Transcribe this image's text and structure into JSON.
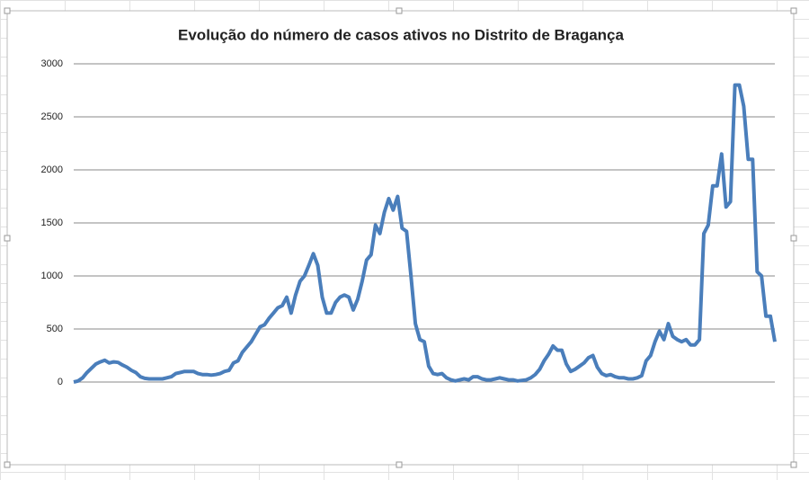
{
  "chart_data": {
    "type": "line",
    "title": "Evolução do número de casos ativos no Distrito de Bragança",
    "color": "#4a7ebb",
    "grid": true,
    "ylim": [
      0,
      3000
    ],
    "yticks": [
      0,
      500,
      1000,
      1500,
      2000,
      2500,
      3000
    ],
    "values": [
      0,
      10,
      40,
      90,
      130,
      170,
      190,
      205,
      180,
      190,
      185,
      160,
      140,
      110,
      90,
      50,
      35,
      30,
      30,
      30,
      30,
      40,
      50,
      80,
      90,
      100,
      100,
      100,
      80,
      70,
      70,
      65,
      70,
      80,
      100,
      110,
      180,
      200,
      280,
      330,
      380,
      450,
      520,
      540,
      600,
      650,
      700,
      720,
      800,
      650,
      820,
      950,
      1000,
      1100,
      1210,
      1100,
      800,
      650,
      650,
      750,
      800,
      820,
      800,
      680,
      780,
      950,
      1150,
      1200,
      1480,
      1400,
      1600,
      1730,
      1620,
      1750,
      1450,
      1420,
      1000,
      550,
      400,
      380,
      150,
      80,
      70,
      80,
      40,
      20,
      10,
      20,
      30,
      20,
      50,
      50,
      30,
      20,
      20,
      30,
      40,
      30,
      20,
      20,
      10,
      15,
      20,
      40,
      70,
      120,
      200,
      260,
      340,
      300,
      300,
      170,
      100,
      120,
      150,
      180,
      230,
      250,
      140,
      80,
      60,
      70,
      50,
      40,
      40,
      30,
      30,
      40,
      60,
      200,
      250,
      380,
      480,
      400,
      550,
      430,
      400,
      380,
      400,
      350,
      350,
      400,
      1400,
      1480,
      1850,
      1850,
      2150,
      1650,
      1700,
      2800,
      2800,
      2600,
      2100,
      2100,
      1040,
      1000,
      620,
      620,
      380
    ]
  }
}
